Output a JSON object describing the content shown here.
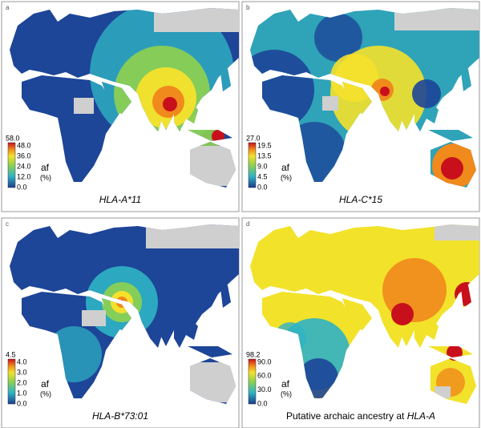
{
  "panels": [
    {
      "label": "a",
      "caption": "HLA-A*11",
      "legend": {
        "max": "58.0",
        "ticks": [
          "48.0",
          "36.0",
          "24.0",
          "12.0",
          "0.0"
        ],
        "unit": "af",
        "unit_note": "(%)"
      }
    },
    {
      "label": "b",
      "caption": "HLA-C*15",
      "legend": {
        "max": "27.0",
        "ticks": [
          "19.5",
          "13.5",
          "9.0",
          "4.5",
          "0.0"
        ],
        "unit": "af",
        "unit_note": "(%)"
      }
    },
    {
      "label": "c",
      "caption": "HLA-B*73:01",
      "legend": {
        "max": "4.5",
        "ticks": [
          "4.0",
          "3.0",
          "2.0",
          "1.0",
          "0.0"
        ],
        "unit": "af",
        "unit_note": "(%)"
      }
    },
    {
      "label": "d",
      "caption_prefix": "Putative archaic ancestry at",
      "caption": "HLA-A",
      "legend": {
        "max": "98.2",
        "ticks": [
          "90.0",
          "60.0",
          "30.0",
          "0.0"
        ],
        "unit": "af",
        "unit_note": "(%)"
      }
    }
  ]
}
